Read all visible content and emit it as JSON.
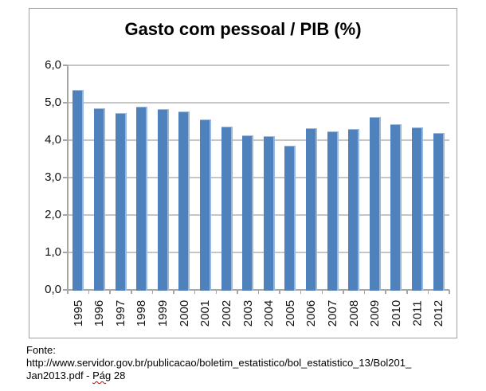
{
  "chart_data": {
    "type": "bar",
    "title": "Gasto com pessoal / PIB (%)",
    "categories": [
      "1995",
      "1996",
      "1997",
      "1998",
      "1999",
      "2000",
      "2001",
      "2002",
      "2003",
      "2004",
      "2005",
      "2006",
      "2007",
      "2008",
      "2009",
      "2010",
      "2011",
      "2012"
    ],
    "values": [
      5.35,
      4.85,
      4.73,
      4.9,
      4.84,
      4.76,
      4.55,
      4.36,
      4.13,
      4.11,
      3.85,
      4.32,
      4.23,
      4.3,
      4.61,
      4.43,
      4.33,
      4.2
    ],
    "ylim": [
      0,
      6
    ],
    "ytick_step": 1,
    "ytick_labels": [
      "0,0",
      "1,0",
      "2,0",
      "3,0",
      "4,0",
      "5,0",
      "6,0"
    ],
    "xlabel": "",
    "ylabel": "",
    "grid": "horizontal",
    "legend": "none",
    "bar_color": "#4f81bd",
    "bar_highlight_color": "#9ab7dc",
    "gridline_color": "#c6c6c6",
    "axis_color": "#a6a6a6"
  },
  "footer": {
    "line1": "Fonte:",
    "line2": "http://www.servidor.gov.br/publicacao/boletim_estatistico/bol_estatistico_13/Bol201_",
    "line3_before": "Jan2013.pdf - ",
    "line3_word": "Pág",
    "line3_after": " 28"
  }
}
